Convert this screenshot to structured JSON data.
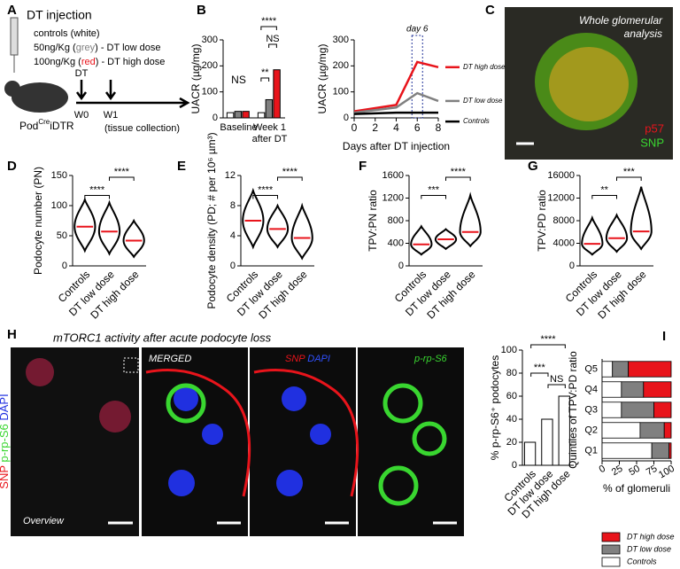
{
  "panels": [
    "A",
    "B",
    "C",
    "D",
    "E",
    "F",
    "G",
    "H",
    "I"
  ],
  "panel_a": {
    "title": "DT injection",
    "line1": "controls (white)",
    "line2": [
      "50ng/Kg (",
      "grey",
      ") - DT low dose"
    ],
    "line3": [
      "100ng/Kg (",
      "red",
      ") - DT high dose"
    ],
    "arrow_label": "DT",
    "timepoints": [
      "W0",
      "W1"
    ],
    "note": "(tissue collection)",
    "mouse_label": [
      "Pod",
      "Cre",
      "iDTR"
    ]
  },
  "panel_c": {
    "title": [
      "Whole glomerular",
      "analysis"
    ],
    "markers": [
      "p57",
      "SNP"
    ]
  },
  "panel_h": {
    "title": "mTORC1 activity after acute podocyte loss",
    "stains": [
      "SNP",
      "p-rp-S6",
      "DAPI"
    ],
    "image_labels": [
      "Overview",
      "MERGED",
      "SNP",
      "DAPI",
      "p-rp-S6"
    ]
  },
  "chart_data": [
    {
      "type": "bar",
      "ylabel": "UACR (µg/mg)",
      "categories": [
        "Baseline",
        "Week 1 after DT"
      ],
      "series": [
        {
          "name": "Controls",
          "color": "#ffffff",
          "values": [
            20,
            20
          ]
        },
        {
          "name": "DT low dose",
          "color": "#808080",
          "values": [
            25,
            70
          ]
        },
        {
          "name": "DT high dose",
          "color": "#e8141b",
          "values": [
            25,
            185
          ]
        }
      ],
      "ylim": [
        0,
        300
      ],
      "yticks": [
        0,
        100,
        200,
        300
      ],
      "annotations": [
        "NS",
        "**",
        "****",
        "NS"
      ]
    },
    {
      "type": "line",
      "ylabel": "UACR (µg/mg)",
      "xlabel": "Days after DT injection",
      "x": [
        0,
        4,
        6,
        8
      ],
      "series": [
        {
          "name": "DT high dose",
          "color": "#e8141b",
          "values": [
            25,
            50,
            215,
            195
          ]
        },
        {
          "name": "DT low dose",
          "color": "#808080",
          "values": [
            20,
            40,
            95,
            65
          ]
        },
        {
          "name": "Controls",
          "color": "#000000",
          "values": [
            15,
            20,
            20,
            20
          ]
        }
      ],
      "xlim": [
        0,
        8
      ],
      "xticks": [
        0,
        2,
        4,
        6,
        8
      ],
      "ylim": [
        0,
        300
      ],
      "yticks": [
        0,
        100,
        200,
        300
      ],
      "annotation": "day 6"
    },
    {
      "type": "violin",
      "ylabel": "Podocyte number (PN)",
      "categories": [
        "Controls",
        "DT low dose",
        "DT high dose"
      ],
      "values": [
        65,
        57,
        42
      ],
      "ranges": [
        [
          25,
          110
        ],
        [
          20,
          105
        ],
        [
          15,
          75
        ]
      ],
      "ylim": [
        0,
        150
      ],
      "yticks": [
        0,
        50,
        100,
        150
      ],
      "annotations": [
        "****",
        "****"
      ]
    },
    {
      "type": "violin",
      "ylabel": "Podocyte density (PD; # per 10⁶ µm³)",
      "categories": [
        "Controls",
        "DT low dose",
        "DT high dose"
      ],
      "values": [
        6,
        4.9,
        3.7
      ],
      "ranges": [
        [
          2.5,
          10
        ],
        [
          2.5,
          8
        ],
        [
          1,
          8
        ]
      ],
      "ylim": [
        0,
        12
      ],
      "yticks": [
        0,
        4,
        8,
        12
      ],
      "annotations": [
        "****",
        "****"
      ]
    },
    {
      "type": "violin",
      "ylabel": "TPV:PN ratio",
      "categories": [
        "Controls",
        "DT low dose",
        "DT high dose"
      ],
      "values": [
        380,
        470,
        600
      ],
      "ranges": [
        [
          200,
          700
        ],
        [
          300,
          650
        ],
        [
          350,
          1250
        ]
      ],
      "ylim": [
        0,
        1600
      ],
      "yticks": [
        0,
        400,
        800,
        1200,
        1600
      ],
      "annotations": [
        "***",
        "****"
      ]
    },
    {
      "type": "violin",
      "ylabel": "TPV:PD ratio",
      "categories": [
        "Controls",
        "DT low dose",
        "DT high dose"
      ],
      "values": [
        3900,
        4900,
        6100
      ],
      "ranges": [
        [
          2000,
          8500
        ],
        [
          2500,
          9000
        ],
        [
          3000,
          14000
        ]
      ],
      "ylim": [
        0,
        16000
      ],
      "yticks": [
        0,
        4000,
        8000,
        12000,
        16000
      ],
      "annotations": [
        "**",
        "***"
      ]
    },
    {
      "type": "bar",
      "ylabel": "% p-rp-S6⁺ podocytes",
      "categories": [
        "Controls",
        "DT low dose",
        "DT high dose"
      ],
      "values": [
        20,
        40,
        60
      ],
      "color": "#ffffff",
      "ylim": [
        0,
        100
      ],
      "yticks": [
        0,
        20,
        40,
        60,
        80,
        100
      ],
      "annotations": [
        "***",
        "****",
        "NS"
      ]
    },
    {
      "type": "stacked-barh",
      "ylabel": "Quintiles of TPV:PD ratio",
      "xlabel": "% of glomeruli",
      "categories": [
        "Q1",
        "Q2",
        "Q3",
        "Q4",
        "Q5"
      ],
      "series": [
        {
          "name": "Controls",
          "color": "#ffffff",
          "values": [
            72,
            55,
            28,
            28,
            15
          ]
        },
        {
          "name": "DT low dose",
          "color": "#808080",
          "values": [
            25,
            35,
            47,
            32,
            23
          ]
        },
        {
          "name": "DT high dose",
          "color": "#e8141b",
          "values": [
            3,
            10,
            25,
            40,
            62
          ]
        }
      ],
      "xlim": [
        0,
        100
      ],
      "xticks": [
        0,
        25,
        50,
        75,
        100
      ]
    }
  ]
}
